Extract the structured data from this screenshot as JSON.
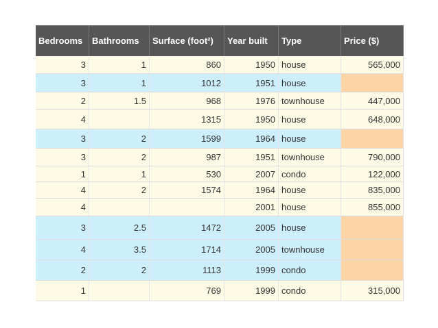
{
  "table": {
    "header": [
      "Bedrooms",
      "Bathrooms",
      "Surface (foot²)",
      "Year built",
      "Type",
      "Price ($)"
    ],
    "rows": [
      [
        3,
        1,
        860,
        1950,
        "house",
        "565,000"
      ],
      [
        3,
        1,
        1012,
        1951,
        "house",
        null
      ],
      [
        2,
        1.5,
        968,
        1976,
        "townhouse",
        "447,000"
      ],
      [
        4,
        null,
        1315,
        1950,
        "house",
        "648,000"
      ],
      [
        3,
        2,
        1599,
        1964,
        "house",
        null
      ],
      [
        3,
        2,
        987,
        1951,
        "townhouse",
        "790,000"
      ],
      [
        1,
        1,
        530,
        2007,
        "condo",
        "122,000"
      ],
      [
        4,
        2,
        1574,
        1964,
        "house",
        "835,000"
      ],
      [
        4,
        null,
        null,
        2001,
        "house",
        "855,000"
      ],
      [
        3,
        2.5,
        1472,
        2005,
        "house",
        null
      ],
      [
        4,
        3.5,
        1714,
        2005,
        "townhouse",
        null
      ],
      [
        2,
        2,
        1113,
        1999,
        "condo",
        null
      ],
      [
        1,
        null,
        769,
        1999,
        "condo",
        "315,000"
      ]
    ]
  }
}
